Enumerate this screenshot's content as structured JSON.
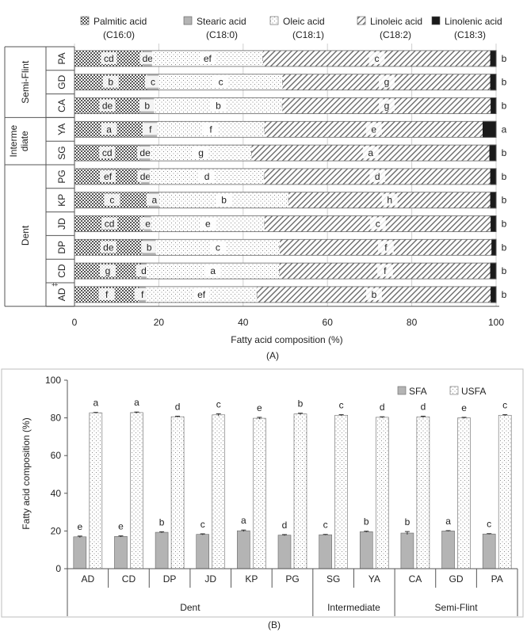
{
  "chart_data": [
    {
      "type": "bar",
      "orientation": "horizontal",
      "stacked": true,
      "panel_label": "(A)",
      "xlabel": "Fatty acid composition (%)",
      "xlim": [
        0,
        100
      ],
      "xticks": [
        "0",
        "20",
        "40",
        "60",
        "80",
        "100"
      ],
      "grid": true,
      "legend_position": "top",
      "categories": [
        "PA",
        "GD",
        "CA",
        "YA",
        "SG",
        "PG",
        "KP",
        "JD",
        "DP",
        "CD",
        "AD"
      ],
      "category_note": "‡",
      "groups": [
        {
          "label": "Semi-Flint",
          "categories": [
            "PA",
            "GD",
            "CA"
          ]
        },
        {
          "label": "Interme diate",
          "line1": "Interme",
          "line2": "diate",
          "categories": [
            "YA",
            "SG"
          ]
        },
        {
          "label": "Dent",
          "categories": [
            "PG",
            "KP",
            "JD",
            "DP",
            "CD",
            "AD"
          ]
        }
      ],
      "series": [
        {
          "name": "Palmitic acid (C16:0)",
          "name_line1": "Palmitic acid",
          "name_line2": "(C16:0)",
          "pattern": "checker",
          "values": [
            16.3,
            17.2,
            15.6,
            16.4,
            15.5,
            15.8,
            17.8,
            16.6,
            16.1,
            15.8,
            15.3
          ],
          "labels": [
            "cd",
            "b",
            "de",
            "a",
            "cd",
            "ef",
            "c",
            "cd",
            "de",
            "g",
            "f"
          ]
        },
        {
          "name": "Stearic acid (C18:0)",
          "name_line1": "Stearic  acid",
          "name_line2": "(C18:0)",
          "pattern": "gray",
          "values": [
            2.1,
            2.8,
            3.3,
            3.2,
            2.5,
            2.0,
            2.3,
            1.6,
            3.2,
            1.3,
            1.6
          ],
          "labels": [
            "de",
            "c",
            "b",
            "f",
            "de",
            "de",
            "a",
            "e",
            "b",
            "d",
            "f"
          ]
        },
        {
          "name": "Oleic acid (C18:1)",
          "name_line1": "Oleic acid",
          "name_line2": "(C18:1)",
          "pattern": "dots",
          "values": [
            26.3,
            29.4,
            30.4,
            25.5,
            24.0,
            27.2,
            30.7,
            26.9,
            29.4,
            31.5,
            26.4
          ],
          "labels": [
            "ef",
            "c",
            "b",
            "f",
            "g",
            "d",
            "b",
            "e",
            "c",
            "a",
            "ef"
          ]
        },
        {
          "name": "Linoleic acid (C18:2)",
          "name_line1": "Linoleic acid",
          "name_line2": "(C18:2)",
          "pattern": "hatch",
          "values": [
            54.0,
            49.3,
            49.5,
            51.8,
            56.5,
            53.7,
            47.9,
            53.7,
            50.3,
            50.1,
            55.5
          ],
          "labels": [
            "c",
            "g",
            "g",
            "e",
            "a",
            "d",
            "h",
            "c",
            "f",
            "f",
            "b"
          ]
        },
        {
          "name": "Linolenic acid (C18:3)",
          "name_line1": "Linolenic acid",
          "name_line2": "(C18:3)",
          "pattern": "black",
          "values": [
            1.3,
            1.3,
            1.2,
            3.1,
            1.5,
            1.3,
            1.3,
            1.2,
            1.0,
            1.3,
            1.2
          ],
          "labels": [
            "b",
            "b",
            "b",
            "a",
            "b",
            "b",
            "b",
            "b",
            "b",
            "b",
            "b"
          ]
        }
      ]
    },
    {
      "type": "bar",
      "orientation": "vertical",
      "panel_label": "(B)",
      "ylabel": "Fatty acid composition (%)",
      "ylim": [
        0,
        100
      ],
      "yticks": [
        "0",
        "20",
        "40",
        "60",
        "80",
        "100"
      ],
      "grid": false,
      "legend_position": "top-right",
      "categories": [
        "AD",
        "CD",
        "DP",
        "JD",
        "KP",
        "PG",
        "SG",
        "YA",
        "CA",
        "GD",
        "PA"
      ],
      "groups": [
        {
          "label": "Dent",
          "categories": [
            "AD",
            "CD",
            "DP",
            "JD",
            "KP",
            "PG"
          ]
        },
        {
          "label": "Intermediate",
          "categories": [
            "SG",
            "YA"
          ]
        },
        {
          "label": "Semi-Flint",
          "categories": [
            "CA",
            "GD",
            "PA"
          ]
        }
      ],
      "series": [
        {
          "name": "SFA",
          "pattern": "gray",
          "values": [
            16.9,
            17.1,
            19.3,
            18.2,
            20.1,
            17.8,
            18.0,
            19.6,
            18.9,
            20.0,
            18.4
          ],
          "errors": [
            0.4,
            0.3,
            0.3,
            0.3,
            0.4,
            0.3,
            0.2,
            0.3,
            0.8,
            0.2,
            0.2
          ],
          "labels": [
            "e",
            "e",
            "b",
            "c",
            "a",
            "d",
            "c",
            "b",
            "b",
            "a",
            "c"
          ]
        },
        {
          "name": "USFA",
          "pattern": "dots",
          "values": [
            82.7,
            82.8,
            80.6,
            81.6,
            79.8,
            82.1,
            81.4,
            80.3,
            80.5,
            80.0,
            81.4
          ],
          "errors": [
            0.2,
            0.3,
            0.3,
            0.6,
            0.5,
            0.4,
            0.3,
            0.3,
            0.4,
            0.3,
            0.3
          ],
          "labels": [
            "a",
            "a",
            "d",
            "c",
            "e",
            "b",
            "c",
            "d",
            "d",
            "e",
            "c"
          ]
        }
      ]
    }
  ]
}
